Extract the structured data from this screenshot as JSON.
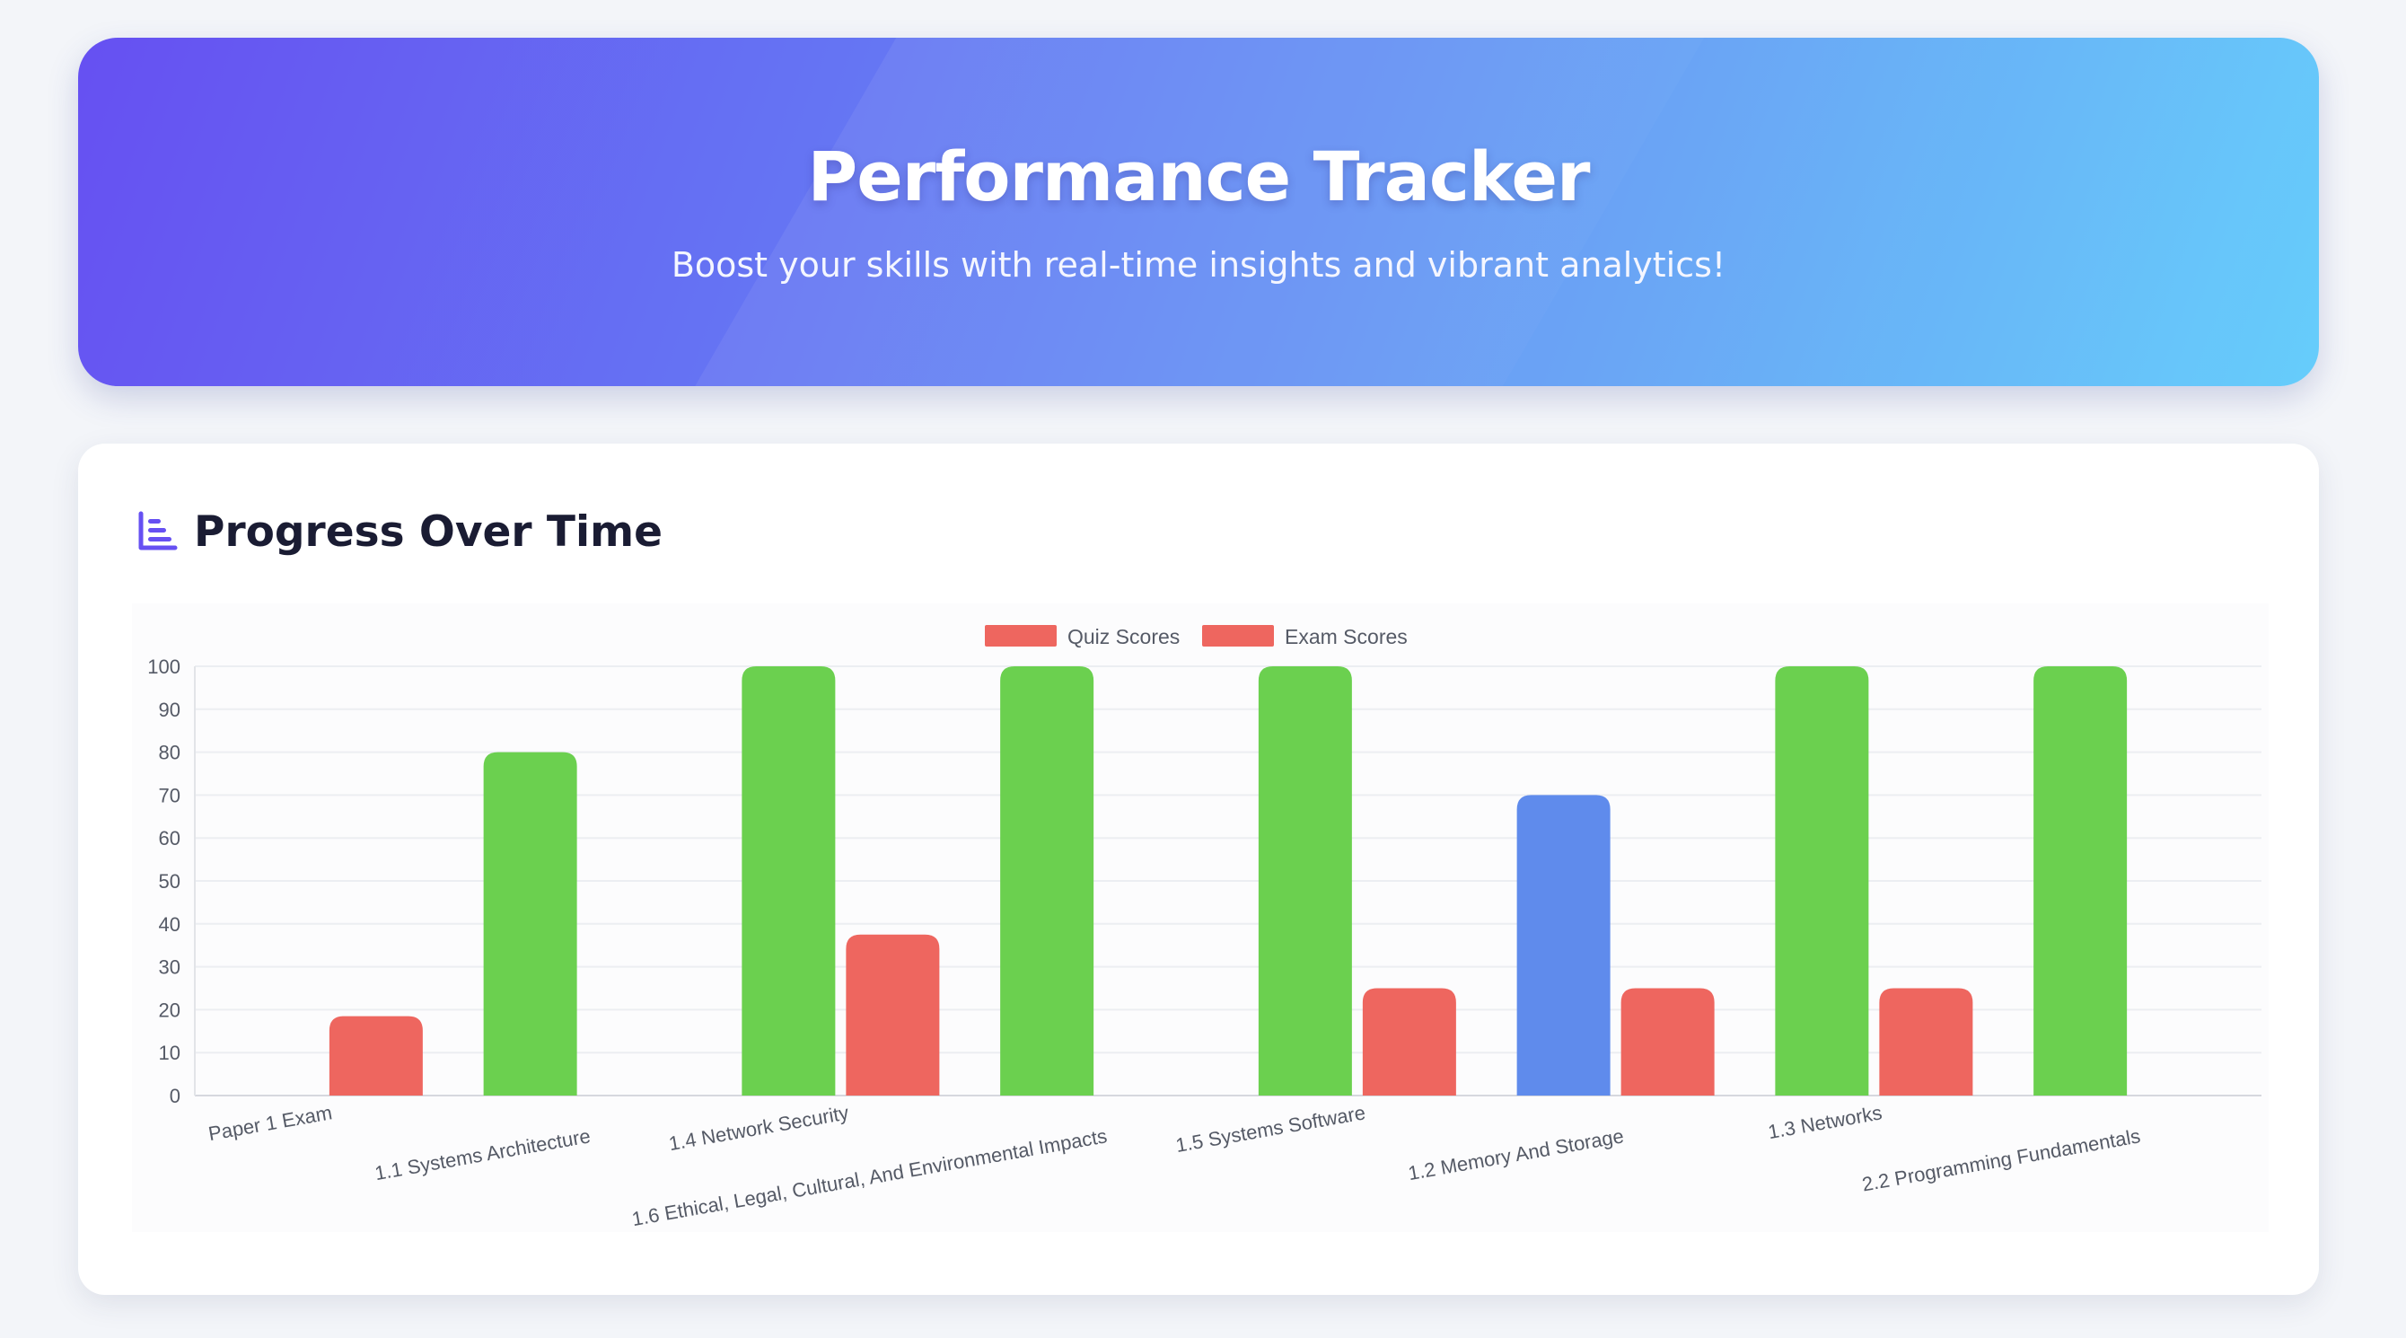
{
  "header": {
    "title": "Performance Tracker",
    "subtitle": "Boost your skills with real-time insights and vibrant analytics!"
  },
  "card": {
    "title": "Progress Over Time",
    "icon": "bar-chart-icon"
  },
  "colors": {
    "green": "#6bd04f",
    "red": "#ee665f",
    "blue": "#5f8bec",
    "accent": "#6650f2"
  },
  "chart_data": {
    "type": "bar",
    "categories": [
      "Paper 1 Exam",
      "1.1 Systems Architecture",
      "1.4 Network Security",
      "1.6 Ethical, Legal, Cultural, And Environmental Impacts",
      "1.5 Systems Software",
      "1.2 Memory And Storage",
      "1.3 Networks",
      "2.2 Programming Fundamentals"
    ],
    "series": [
      {
        "name": "Quiz Scores",
        "color": "#ee665f",
        "values": [
          null,
          80,
          100,
          100,
          100,
          70,
          100,
          100
        ],
        "bar_colors": [
          null,
          "#6bd04f",
          "#6bd04f",
          "#6bd04f",
          "#6bd04f",
          "#5f8bec",
          "#6bd04f",
          "#6bd04f"
        ]
      },
      {
        "name": "Exam Scores",
        "color": "#ee665f",
        "values": [
          18.5,
          null,
          37.5,
          null,
          25,
          25,
          25,
          null
        ],
        "bar_colors": [
          "#ee665f",
          null,
          "#ee665f",
          null,
          "#ee665f",
          "#ee665f",
          "#ee665f",
          null
        ]
      }
    ],
    "ylim": [
      0,
      100
    ],
    "yticks": [
      0,
      10,
      20,
      30,
      40,
      50,
      60,
      70,
      80,
      90,
      100
    ],
    "grid": true,
    "legend": "top-center",
    "xlabel": "",
    "ylabel": ""
  }
}
